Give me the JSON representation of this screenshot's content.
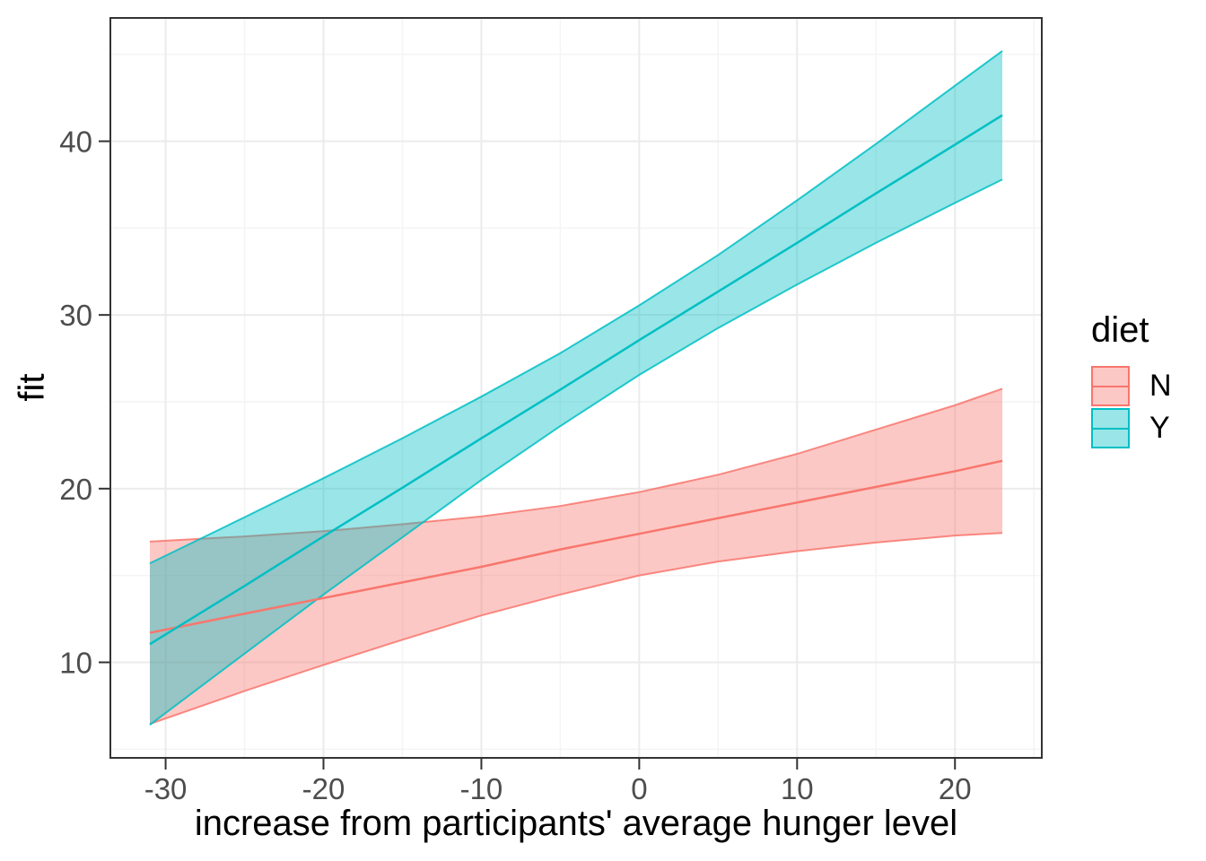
{
  "chart_data": {
    "type": "line",
    "xlabel": "increase from participants' average hunger level",
    "ylabel": "fit",
    "x_ticks": [
      -30,
      -20,
      -10,
      0,
      10,
      20
    ],
    "y_ticks": [
      10,
      20,
      30,
      40
    ],
    "xlim": [
      -33.5,
      25.5
    ],
    "ylim": [
      4.5,
      47.1
    ],
    "grid": "major-and-minor",
    "legend": {
      "title": "diet",
      "position": "right",
      "entries": [
        {
          "label": "N",
          "color": "#F8766D"
        },
        {
          "label": "Y",
          "color": "#00BFC4"
        }
      ]
    },
    "series": [
      {
        "name": "N",
        "color": "#F8766D",
        "band_opacity": 0.4,
        "x": [
          -31,
          -25,
          -20,
          -15,
          -10,
          -5,
          0,
          5,
          10,
          15,
          20,
          23
        ],
        "fit": [
          11.7,
          12.8,
          13.7,
          14.6,
          15.5,
          16.5,
          17.4,
          18.3,
          19.2,
          20.1,
          21.0,
          21.6
        ],
        "lower": [
          6.45,
          8.35,
          9.85,
          11.3,
          12.7,
          13.9,
          15.0,
          15.8,
          16.4,
          16.9,
          17.3,
          17.45
        ],
        "upper": [
          16.95,
          17.25,
          17.55,
          17.95,
          18.4,
          19.0,
          19.8,
          20.8,
          22.0,
          23.4,
          24.8,
          25.75
        ]
      },
      {
        "name": "Y",
        "color": "#00BFC4",
        "band_opacity": 0.4,
        "x": [
          -31,
          -25,
          -20,
          -15,
          -10,
          -5,
          0,
          5,
          10,
          15,
          20,
          23
        ],
        "fit": [
          11.05,
          14.4,
          17.25,
          20.05,
          22.9,
          25.7,
          28.55,
          31.35,
          34.15,
          37.0,
          39.8,
          41.5
        ],
        "lower": [
          6.4,
          10.5,
          13.9,
          17.2,
          20.5,
          23.6,
          26.55,
          29.25,
          31.75,
          34.15,
          36.45,
          37.8
        ],
        "upper": [
          15.7,
          18.35,
          20.6,
          22.9,
          25.3,
          27.8,
          30.55,
          33.45,
          36.6,
          39.85,
          43.2,
          45.2
        ]
      }
    ],
    "style": {
      "panel_background": "#FFFFFF",
      "panel_border": "#333333",
      "grid_major": "#EBEBEB",
      "grid_minor": "#F4F4F4",
      "tick_color": "#333333",
      "tick_label_color": "#4D4D4D"
    }
  }
}
